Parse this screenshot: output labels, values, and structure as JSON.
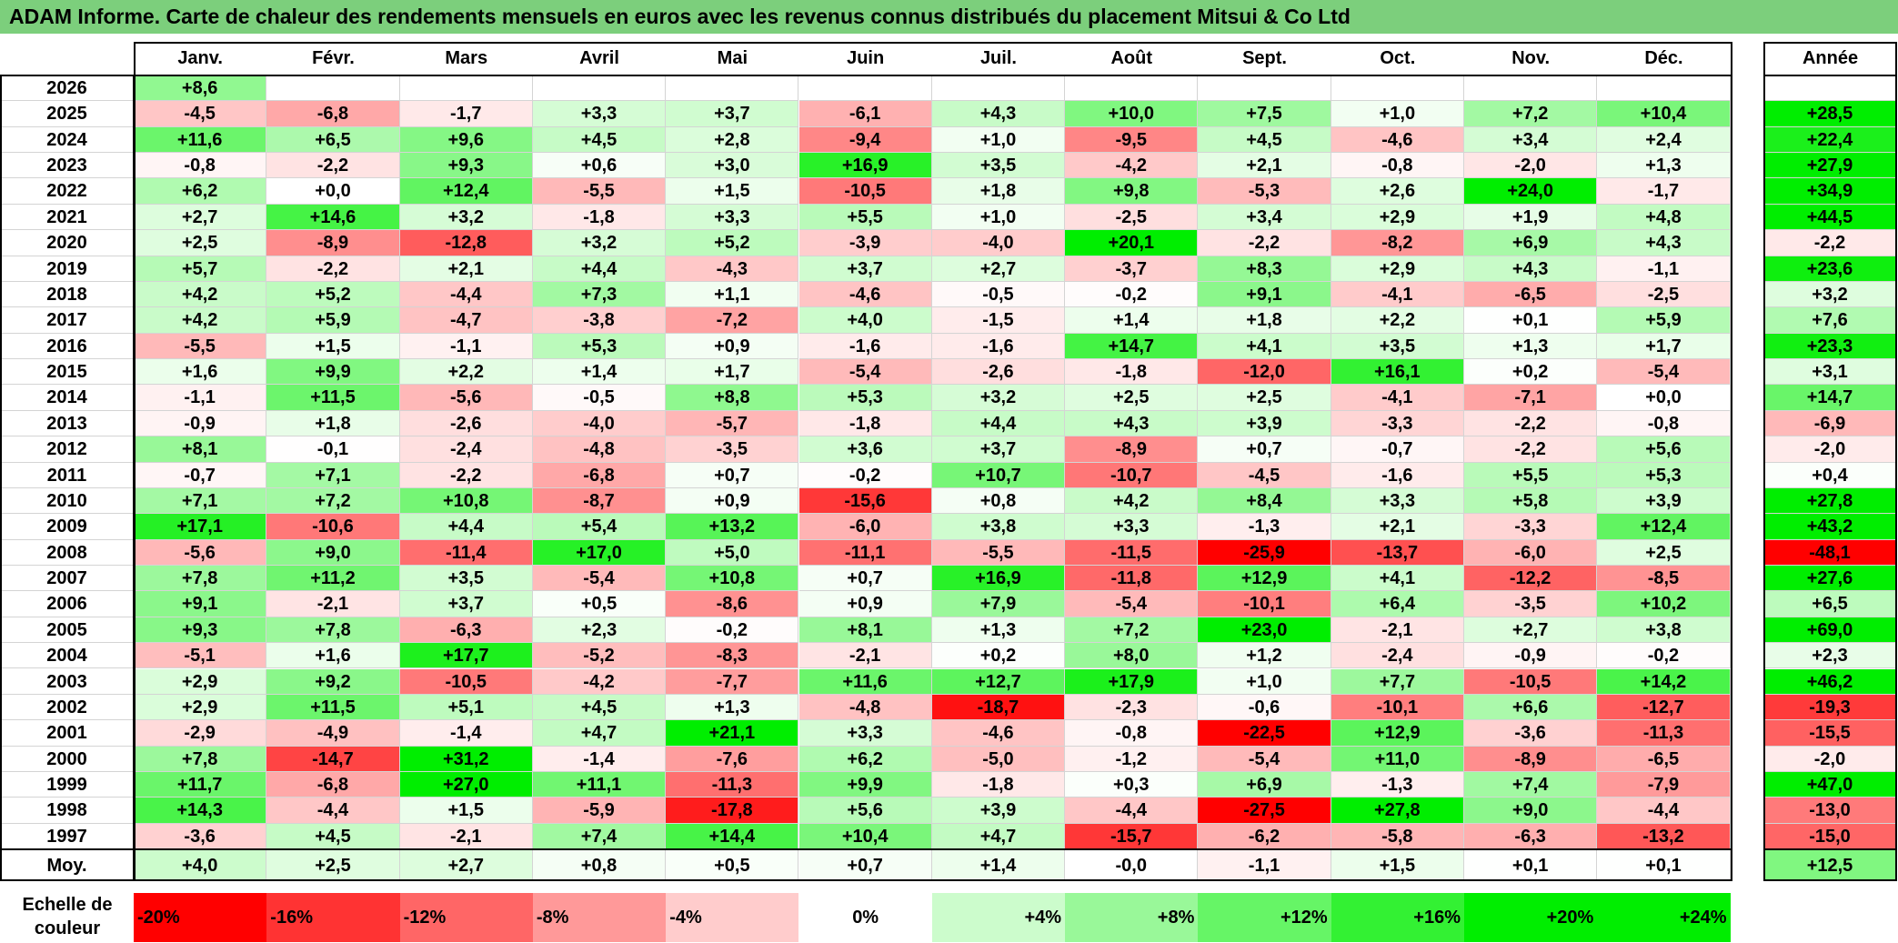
{
  "title": "ADAM Informe. Carte de chaleur des rendements mensuels en euros avec les revenus connus distribués du placement Mitsui & Co Ltd",
  "colors": {
    "title_bg": "#7ccf7c",
    "max_red": "#ff0000",
    "max_green": "#00ee00",
    "neutral": "#ffffff"
  },
  "chart_data": {
    "type": "heatmap",
    "months": [
      "Janv.",
      "Févr.",
      "Mars",
      "Avril",
      "Mai",
      "Juin",
      "Juil.",
      "Août",
      "Sept.",
      "Oct.",
      "Nov.",
      "Déc."
    ],
    "annual_header": "Année",
    "average_label": "Moy.",
    "rows": [
      {
        "year": "2026",
        "values": [
          "+8,6",
          null,
          null,
          null,
          null,
          null,
          null,
          null,
          null,
          null,
          null,
          null
        ],
        "annual": null
      },
      {
        "year": "2025",
        "values": [
          "-4,5",
          "-6,8",
          "-1,7",
          "+3,3",
          "+3,7",
          "-6,1",
          "+4,3",
          "+10,0",
          "+7,5",
          "+1,0",
          "+7,2",
          "+10,4"
        ],
        "annual": "+28,5"
      },
      {
        "year": "2024",
        "values": [
          "+11,6",
          "+6,5",
          "+9,6",
          "+4,5",
          "+2,8",
          "-9,4",
          "+1,0",
          "-9,5",
          "+4,5",
          "-4,6",
          "+3,4",
          "+2,4"
        ],
        "annual": "+22,4"
      },
      {
        "year": "2023",
        "values": [
          "-0,8",
          "-2,2",
          "+9,3",
          "+0,6",
          "+3,0",
          "+16,9",
          "+3,5",
          "-4,2",
          "+2,1",
          "-0,8",
          "-2,0",
          "+1,3"
        ],
        "annual": "+27,9"
      },
      {
        "year": "2022",
        "values": [
          "+6,2",
          "+0,0",
          "+12,4",
          "-5,5",
          "+1,5",
          "-10,5",
          "+1,8",
          "+9,8",
          "-5,3",
          "+2,6",
          "+24,0",
          "-1,7"
        ],
        "annual": "+34,9"
      },
      {
        "year": "2021",
        "values": [
          "+2,7",
          "+14,6",
          "+3,2",
          "-1,8",
          "+3,3",
          "+5,5",
          "+1,0",
          "-2,5",
          "+3,4",
          "+2,9",
          "+1,9",
          "+4,8"
        ],
        "annual": "+44,5"
      },
      {
        "year": "2020",
        "values": [
          "+2,5",
          "-8,9",
          "-12,8",
          "+3,2",
          "+5,2",
          "-3,9",
          "-4,0",
          "+20,1",
          "-2,2",
          "-8,2",
          "+6,9",
          "+4,3"
        ],
        "annual": "-2,2"
      },
      {
        "year": "2019",
        "values": [
          "+5,7",
          "-2,2",
          "+2,1",
          "+4,4",
          "-4,3",
          "+3,7",
          "+2,7",
          "-3,7",
          "+8,3",
          "+2,9",
          "+4,3",
          "-1,1"
        ],
        "annual": "+23,6"
      },
      {
        "year": "2018",
        "values": [
          "+4,2",
          "+5,2",
          "-4,4",
          "+7,3",
          "+1,1",
          "-4,6",
          "-0,5",
          "-0,2",
          "+9,1",
          "-4,1",
          "-6,5",
          "-2,5"
        ],
        "annual": "+3,2"
      },
      {
        "year": "2017",
        "values": [
          "+4,2",
          "+5,9",
          "-4,7",
          "-3,8",
          "-7,2",
          "+4,0",
          "-1,5",
          "+1,4",
          "+1,8",
          "+2,2",
          "+0,1",
          "+5,9"
        ],
        "annual": "+7,6"
      },
      {
        "year": "2016",
        "values": [
          "-5,5",
          "+1,5",
          "-1,1",
          "+5,3",
          "+0,9",
          "-1,6",
          "-1,6",
          "+14,7",
          "+4,1",
          "+3,5",
          "+1,3",
          "+1,7"
        ],
        "annual": "+23,3"
      },
      {
        "year": "2015",
        "values": [
          "+1,6",
          "+9,9",
          "+2,2",
          "+1,4",
          "+1,7",
          "-5,4",
          "-2,6",
          "-1,8",
          "-12,0",
          "+16,1",
          "+0,2",
          "-5,4"
        ],
        "annual": "+3,1"
      },
      {
        "year": "2014",
        "values": [
          "-1,1",
          "+11,5",
          "-5,6",
          "-0,5",
          "+8,8",
          "+5,3",
          "+3,2",
          "+2,5",
          "+2,5",
          "-4,1",
          "-7,1",
          "+0,0"
        ],
        "annual": "+14,7"
      },
      {
        "year": "2013",
        "values": [
          "-0,9",
          "+1,8",
          "-2,6",
          "-4,0",
          "-5,7",
          "-1,8",
          "+4,4",
          "+4,3",
          "+3,9",
          "-3,3",
          "-2,2",
          "-0,8"
        ],
        "annual": "-6,9"
      },
      {
        "year": "2012",
        "values": [
          "+8,1",
          "-0,1",
          "-2,4",
          "-4,8",
          "-3,5",
          "+3,6",
          "+3,7",
          "-8,9",
          "+0,7",
          "-0,7",
          "-2,2",
          "+5,6"
        ],
        "annual": "-2,0"
      },
      {
        "year": "2011",
        "values": [
          "-0,7",
          "+7,1",
          "-2,2",
          "-6,8",
          "+0,7",
          "-0,2",
          "+10,7",
          "-10,7",
          "-4,5",
          "-1,6",
          "+5,5",
          "+5,3"
        ],
        "annual": "+0,4"
      },
      {
        "year": "2010",
        "values": [
          "+7,1",
          "+7,2",
          "+10,8",
          "-8,7",
          "+0,9",
          "-15,6",
          "+0,8",
          "+4,2",
          "+8,4",
          "+3,3",
          "+5,8",
          "+3,9"
        ],
        "annual": "+27,8"
      },
      {
        "year": "2009",
        "values": [
          "+17,1",
          "-10,6",
          "+4,4",
          "+5,4",
          "+13,2",
          "-6,0",
          "+3,8",
          "+3,3",
          "-1,3",
          "+2,1",
          "-3,3",
          "+12,4"
        ],
        "annual": "+43,2"
      },
      {
        "year": "2008",
        "values": [
          "-5,6",
          "+9,0",
          "-11,4",
          "+17,0",
          "+5,0",
          "-11,1",
          "-5,5",
          "-11,5",
          "-25,9",
          "-13,7",
          "-6,0",
          "+2,5"
        ],
        "annual": "-48,1"
      },
      {
        "year": "2007",
        "values": [
          "+7,8",
          "+11,2",
          "+3,5",
          "-5,4",
          "+10,8",
          "+0,7",
          "+16,9",
          "-11,8",
          "+12,9",
          "+4,1",
          "-12,2",
          "-8,5"
        ],
        "annual": "+27,6"
      },
      {
        "year": "2006",
        "values": [
          "+9,1",
          "-2,1",
          "+3,7",
          "+0,5",
          "-8,6",
          "+0,9",
          "+7,9",
          "-5,4",
          "-10,1",
          "+6,4",
          "-3,5",
          "+10,2"
        ],
        "annual": "+6,5"
      },
      {
        "year": "2005",
        "values": [
          "+9,3",
          "+7,8",
          "-6,3",
          "+2,3",
          "-0,2",
          "+8,1",
          "+1,3",
          "+7,2",
          "+23,0",
          "-2,1",
          "+2,7",
          "+3,8"
        ],
        "annual": "+69,0"
      },
      {
        "year": "2004",
        "values": [
          "-5,1",
          "+1,6",
          "+17,7",
          "-5,2",
          "-8,3",
          "-2,1",
          "+0,2",
          "+8,0",
          "+1,2",
          "-2,4",
          "-0,9",
          "-0,2"
        ],
        "annual": "+2,3"
      },
      {
        "year": "2003",
        "values": [
          "+2,9",
          "+9,2",
          "-10,5",
          "-4,2",
          "-7,7",
          "+11,6",
          "+12,7",
          "+17,9",
          "+1,0",
          "+7,7",
          "-10,5",
          "+14,2"
        ],
        "annual": "+46,2"
      },
      {
        "year": "2002",
        "values": [
          "+2,9",
          "+11,5",
          "+5,1",
          "+4,5",
          "+1,3",
          "-4,8",
          "-18,7",
          "-2,3",
          "-0,6",
          "-10,1",
          "+6,6",
          "-12,7"
        ],
        "annual": "-19,3"
      },
      {
        "year": "2001",
        "values": [
          "-2,9",
          "-4,9",
          "-1,4",
          "+4,7",
          "+21,1",
          "+3,3",
          "-4,6",
          "-0,8",
          "-22,5",
          "+12,9",
          "-3,6",
          "-11,3"
        ],
        "annual": "-15,5"
      },
      {
        "year": "2000",
        "values": [
          "+7,8",
          "-14,7",
          "+31,2",
          "-1,4",
          "-7,6",
          "+6,2",
          "-5,0",
          "-1,2",
          "-5,4",
          "+11,0",
          "-8,9",
          "-6,5"
        ],
        "annual": "-2,0"
      },
      {
        "year": "1999",
        "values": [
          "+11,7",
          "-6,8",
          "+27,0",
          "+11,1",
          "-11,3",
          "+9,9",
          "-1,8",
          "+0,3",
          "+6,9",
          "-1,3",
          "+7,4",
          "-7,9"
        ],
        "annual": "+47,0"
      },
      {
        "year": "1998",
        "values": [
          "+14,3",
          "-4,4",
          "+1,5",
          "-5,9",
          "-17,8",
          "+5,6",
          "+3,9",
          "-4,4",
          "-27,5",
          "+27,8",
          "+9,0",
          "-4,4"
        ],
        "annual": "-13,0"
      },
      {
        "year": "1997",
        "values": [
          "-3,6",
          "+4,5",
          "-2,1",
          "+7,4",
          "+14,4",
          "+10,4",
          "+4,7",
          "-15,7",
          "-6,2",
          "-5,8",
          "-6,3",
          "-13,2"
        ],
        "annual": "-15,0"
      }
    ],
    "averages": [
      "+4,0",
      "+2,5",
      "+2,7",
      "+0,8",
      "+0,5",
      "+0,7",
      "+1,4",
      "-0,0",
      "-1,1",
      "+1,5",
      "+0,1",
      "+0,1"
    ],
    "average_annual": "+12,5",
    "color_scale": {
      "label": "Echelle de couleur",
      "stops": [
        "-20%",
        "-16%",
        "-12%",
        "-8%",
        "-4%",
        "0%",
        "+4%",
        "+8%",
        "+12%",
        "+16%",
        "+20%",
        "+24%"
      ],
      "values": [
        -20,
        -16,
        -12,
        -8,
        -4,
        0,
        4,
        8,
        12,
        16,
        20,
        24
      ]
    }
  }
}
